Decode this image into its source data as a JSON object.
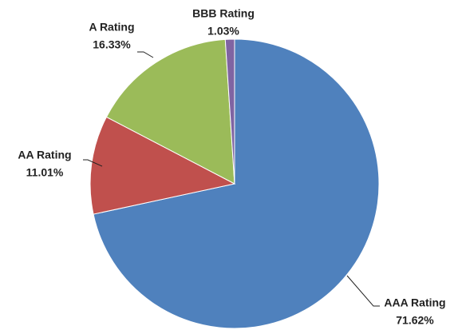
{
  "chart_data": {
    "type": "pie",
    "categories": [
      "AAA Rating",
      "AA Rating",
      "A Rating",
      "BBB Rating"
    ],
    "values": [
      71.62,
      11.01,
      16.33,
      1.03
    ],
    "value_labels": [
      "71.62%",
      "11.01%",
      "16.33%",
      "1.03%"
    ],
    "colors": [
      "#4f81bd",
      "#c0504d",
      "#9bbb59",
      "#8064a2"
    ]
  }
}
